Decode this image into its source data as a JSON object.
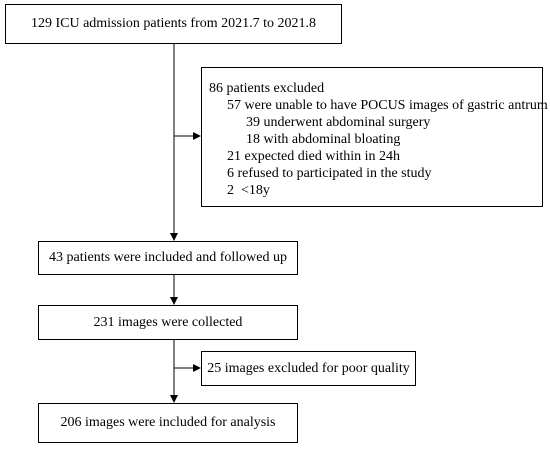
{
  "flowchart": {
    "admission": "129 ICU admission patients from 2021.7 to 2021.8",
    "exclusion": {
      "header": "86 patients excluded",
      "lines": [
        "57 were unable to have POCUS images of gastric antrum",
        "39 underwent abdominal surgery",
        "18 with abdominal bloating",
        "21 expected died within in 24h",
        "6 refused to participated in the study",
        "2  <18y"
      ]
    },
    "included": "43 patients were included and followed up",
    "collected": "231 images were collected",
    "poor_quality": "25 images excluded for poor quality",
    "analysis": "206 images were included for analysis"
  }
}
